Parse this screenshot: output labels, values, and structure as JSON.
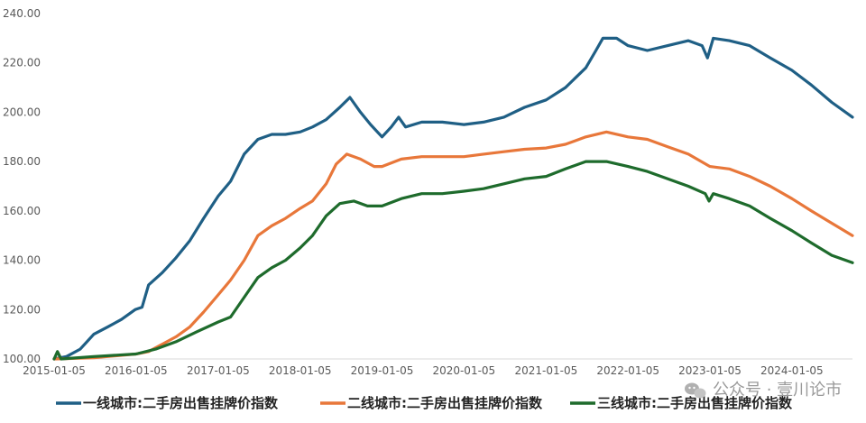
{
  "chart_data": {
    "type": "line",
    "title": "",
    "xlabel": "",
    "ylabel": "",
    "ylim": [
      100,
      240
    ],
    "yticks": [
      "100.00",
      "120.00",
      "140.00",
      "160.00",
      "180.00",
      "200.00",
      "220.00",
      "240.00"
    ],
    "xlim": [
      "2015-01-05",
      "2024-10-01"
    ],
    "xticks": [
      "2015-01-05",
      "2016-01-05",
      "2017-01-05",
      "2018-01-05",
      "2019-01-05",
      "2020-01-05",
      "2021-01-05",
      "2022-01-05",
      "2023-01-05",
      "2024-01-05"
    ],
    "grid": false,
    "legend_position": "bottom",
    "series": [
      {
        "name": "一线城市:二手房出售挂牌价指数",
        "color": "#1f5f85",
        "points": [
          [
            "2015-01-05",
            100
          ],
          [
            "2015-03-01",
            101
          ],
          [
            "2015-05-01",
            104
          ],
          [
            "2015-07-01",
            110
          ],
          [
            "2015-09-01",
            113
          ],
          [
            "2015-11-01",
            116
          ],
          [
            "2016-01-01",
            120
          ],
          [
            "2016-02-01",
            121
          ],
          [
            "2016-03-01",
            130
          ],
          [
            "2016-05-01",
            135
          ],
          [
            "2016-07-01",
            141
          ],
          [
            "2016-09-01",
            148
          ],
          [
            "2016-11-01",
            157
          ],
          [
            "2017-01-05",
            166
          ],
          [
            "2017-03-01",
            172
          ],
          [
            "2017-05-01",
            183
          ],
          [
            "2017-07-01",
            189
          ],
          [
            "2017-09-01",
            191
          ],
          [
            "2017-11-01",
            191
          ],
          [
            "2018-01-05",
            192
          ],
          [
            "2018-03-01",
            194
          ],
          [
            "2018-05-01",
            197
          ],
          [
            "2018-07-01",
            202
          ],
          [
            "2018-08-15",
            206
          ],
          [
            "2018-10-01",
            200
          ],
          [
            "2018-11-15",
            195
          ],
          [
            "2019-01-05",
            190
          ],
          [
            "2019-02-15",
            194
          ],
          [
            "2019-03-20",
            198
          ],
          [
            "2019-04-20",
            194
          ],
          [
            "2019-07-01",
            196
          ],
          [
            "2019-10-01",
            196
          ],
          [
            "2020-01-05",
            195
          ],
          [
            "2020-04-01",
            196
          ],
          [
            "2020-07-01",
            198
          ],
          [
            "2020-10-01",
            202
          ],
          [
            "2021-01-05",
            205
          ],
          [
            "2021-04-01",
            210
          ],
          [
            "2021-07-01",
            218
          ],
          [
            "2021-08-15",
            225
          ],
          [
            "2021-09-15",
            230
          ],
          [
            "2021-11-15",
            230
          ],
          [
            "2022-01-05",
            227
          ],
          [
            "2022-04-01",
            225
          ],
          [
            "2022-07-01",
            227
          ],
          [
            "2022-10-01",
            229
          ],
          [
            "2022-12-01",
            227
          ],
          [
            "2022-12-25",
            222
          ],
          [
            "2023-01-20",
            230
          ],
          [
            "2023-04-01",
            229
          ],
          [
            "2023-07-01",
            227
          ],
          [
            "2023-10-01",
            222
          ],
          [
            "2024-01-05",
            217
          ],
          [
            "2024-04-01",
            211
          ],
          [
            "2024-07-01",
            204
          ],
          [
            "2024-10-01",
            198
          ]
        ]
      },
      {
        "name": "二线城市:二手房出售挂牌价指数",
        "color": "#e8773a",
        "points": [
          [
            "2015-01-05",
            100
          ],
          [
            "2015-07-01",
            100.5
          ],
          [
            "2016-01-05",
            102
          ],
          [
            "2016-03-01",
            103
          ],
          [
            "2016-05-01",
            106
          ],
          [
            "2016-07-01",
            109
          ],
          [
            "2016-09-01",
            113
          ],
          [
            "2016-11-01",
            119
          ],
          [
            "2017-01-05",
            126
          ],
          [
            "2017-03-01",
            132
          ],
          [
            "2017-05-01",
            140
          ],
          [
            "2017-07-01",
            150
          ],
          [
            "2017-09-01",
            154
          ],
          [
            "2017-11-01",
            157
          ],
          [
            "2018-01-05",
            161
          ],
          [
            "2018-03-01",
            164
          ],
          [
            "2018-05-01",
            171
          ],
          [
            "2018-06-15",
            179
          ],
          [
            "2018-08-01",
            183
          ],
          [
            "2018-10-01",
            181
          ],
          [
            "2018-12-01",
            178
          ],
          [
            "2019-01-05",
            178
          ],
          [
            "2019-04-01",
            181
          ],
          [
            "2019-07-01",
            182
          ],
          [
            "2019-10-01",
            182
          ],
          [
            "2020-01-05",
            182
          ],
          [
            "2020-04-01",
            183
          ],
          [
            "2020-07-01",
            184
          ],
          [
            "2020-10-01",
            185
          ],
          [
            "2021-01-05",
            185.5
          ],
          [
            "2021-04-01",
            187
          ],
          [
            "2021-07-01",
            190
          ],
          [
            "2021-10-01",
            192
          ],
          [
            "2022-01-05",
            190
          ],
          [
            "2022-04-01",
            189
          ],
          [
            "2022-07-01",
            186
          ],
          [
            "2022-10-01",
            183
          ],
          [
            "2023-01-05",
            178
          ],
          [
            "2023-04-01",
            177
          ],
          [
            "2023-07-01",
            174
          ],
          [
            "2023-10-01",
            170
          ],
          [
            "2024-01-05",
            165
          ],
          [
            "2024-04-01",
            160
          ],
          [
            "2024-07-01",
            155
          ],
          [
            "2024-10-01",
            150
          ]
        ]
      },
      {
        "name": "三线城市:二手房出售挂牌价指数",
        "color": "#1e6b2c",
        "points": [
          [
            "2015-01-05",
            100
          ],
          [
            "2015-01-20",
            103
          ],
          [
            "2015-02-05",
            100
          ],
          [
            "2015-07-01",
            101
          ],
          [
            "2016-01-05",
            102
          ],
          [
            "2016-04-01",
            104
          ],
          [
            "2016-07-01",
            107
          ],
          [
            "2016-10-01",
            111
          ],
          [
            "2017-01-05",
            115
          ],
          [
            "2017-03-01",
            117
          ],
          [
            "2017-05-01",
            125
          ],
          [
            "2017-07-01",
            133
          ],
          [
            "2017-09-01",
            137
          ],
          [
            "2017-11-01",
            140
          ],
          [
            "2018-01-05",
            145
          ],
          [
            "2018-03-01",
            150
          ],
          [
            "2018-05-01",
            158
          ],
          [
            "2018-07-01",
            163
          ],
          [
            "2018-09-01",
            164
          ],
          [
            "2018-11-01",
            162
          ],
          [
            "2019-01-05",
            162
          ],
          [
            "2019-04-01",
            165
          ],
          [
            "2019-07-01",
            167
          ],
          [
            "2019-10-01",
            167
          ],
          [
            "2020-01-05",
            168
          ],
          [
            "2020-04-01",
            169
          ],
          [
            "2020-07-01",
            171
          ],
          [
            "2020-10-01",
            173
          ],
          [
            "2021-01-05",
            174
          ],
          [
            "2021-04-01",
            177
          ],
          [
            "2021-07-01",
            180
          ],
          [
            "2021-10-01",
            180
          ],
          [
            "2022-01-05",
            178
          ],
          [
            "2022-04-01",
            176
          ],
          [
            "2022-07-01",
            173
          ],
          [
            "2022-10-01",
            170
          ],
          [
            "2022-12-15",
            167
          ],
          [
            "2023-01-01",
            164
          ],
          [
            "2023-01-20",
            167
          ],
          [
            "2023-04-01",
            165
          ],
          [
            "2023-07-01",
            162
          ],
          [
            "2023-10-01",
            157
          ],
          [
            "2024-01-05",
            152
          ],
          [
            "2024-04-01",
            147
          ],
          [
            "2024-07-01",
            142
          ],
          [
            "2024-10-01",
            139
          ]
        ]
      }
    ]
  },
  "watermark": {
    "text": "公众号 · 壹川论市",
    "icon": "wechat-icon"
  }
}
